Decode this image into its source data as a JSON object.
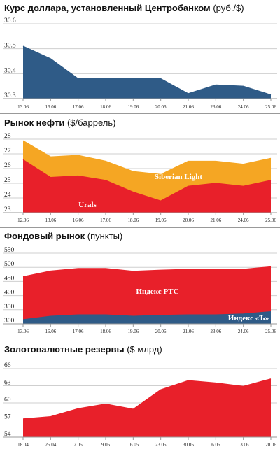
{
  "chart_data": [
    {
      "type": "area",
      "title": "Курс доллара, установленный Центробанком",
      "unit": "(руб./$)",
      "categories": [
        "13.06",
        "16.06",
        "17.06",
        "18.06",
        "19.06",
        "20.06",
        "21.06",
        "23.06",
        "24.06",
        "25.06"
      ],
      "series": [
        {
          "values": [
            30.51,
            30.46,
            30.38,
            30.38,
            30.38,
            30.38,
            30.32,
            30.355,
            30.35,
            30.315
          ],
          "color": "#2f5b87"
        }
      ],
      "yticks": [
        30.3,
        30.4,
        30.5,
        30.6
      ],
      "ytick_labels": [
        "30.3",
        "30.4",
        "30.5",
        "30.6"
      ],
      "ylim": [
        30.3,
        30.6
      ],
      "grid": true
    },
    {
      "type": "area",
      "title": "Рынок нефти",
      "unit": "($/баррель)",
      "categories": [
        "12.06",
        "13.06",
        "16.06",
        "17.06",
        "18.06",
        "19.06",
        "20.06",
        "21.06",
        "24.06",
        "25.06"
      ],
      "series": [
        {
          "name": "Siberian Light",
          "values": [
            27.9,
            26.8,
            26.9,
            26.5,
            25.8,
            25.6,
            26.5,
            26.5,
            26.3,
            26.7
          ],
          "color": "#f5a623"
        },
        {
          "name": "Urals",
          "values": [
            26.6,
            25.4,
            25.5,
            25.2,
            24.4,
            23.8,
            24.8,
            25.0,
            24.8,
            25.2
          ],
          "color": "#e8202a"
        }
      ],
      "yticks": [
        23,
        24,
        25,
        26,
        27,
        28
      ],
      "ytick_labels": [
        "23",
        "24",
        "25",
        "26",
        "27",
        "28"
      ],
      "ylim": [
        23,
        28
      ],
      "grid": true
    },
    {
      "type": "area",
      "title": "Фондовый рынок",
      "unit": "(пункты)",
      "categories": [
        "13.06",
        "16.06",
        "17.06",
        "18.06",
        "19.06",
        "20.06",
        "21.06",
        "23.06",
        "24.06",
        "25.06"
      ],
      "series": [
        {
          "name": "Индекс РТС",
          "values": [
            467,
            487,
            496,
            496,
            486,
            490,
            493,
            492,
            493,
            502
          ],
          "color": "#e8202a"
        },
        {
          "name": "Индекс «Ъ»",
          "values": [
            315,
            327,
            332,
            332,
            327,
            330,
            332,
            332,
            335,
            343
          ],
          "color": "#2f5b87"
        }
      ],
      "yticks": [
        300,
        350,
        400,
        450,
        500,
        550
      ],
      "ytick_labels": [
        "300",
        "350",
        "400",
        "450",
        "500",
        "550"
      ],
      "ylim": [
        300,
        550
      ],
      "grid": true
    },
    {
      "type": "area",
      "title": "Золотовалютные резервы",
      "unit": "($ млрд)",
      "categories": [
        "18.04",
        "25.04",
        "2.05",
        "9.05",
        "16.05",
        "23.05",
        "30.05",
        "6.06",
        "13.06",
        "20.06"
      ],
      "series": [
        {
          "values": [
            57.2,
            57.6,
            59.0,
            59.8,
            58.9,
            62.3,
            63.9,
            63.5,
            62.9,
            64.2
          ],
          "color": "#e8202a"
        }
      ],
      "yticks": [
        54,
        57,
        60,
        63,
        66
      ],
      "ytick_labels": [
        "54",
        "57",
        "60",
        "63",
        "66"
      ],
      "ylim": [
        54,
        66
      ],
      "grid": true
    }
  ]
}
